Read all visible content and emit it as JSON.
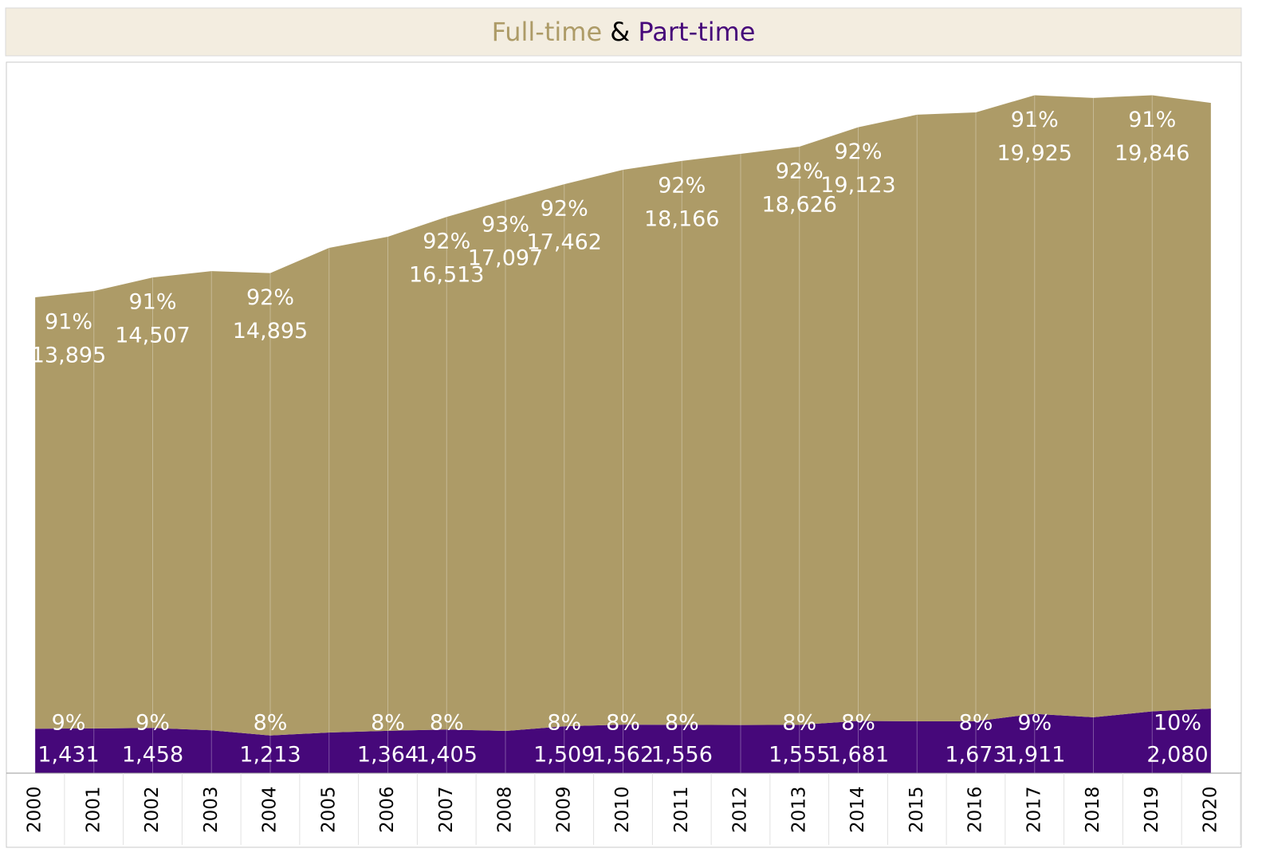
{
  "chart_data": {
    "type": "stacked-area",
    "title_joiner": "&",
    "categories": [
      "2000",
      "2001",
      "2002",
      "2003",
      "2004",
      "2005",
      "2006",
      "2007",
      "2008",
      "2009",
      "2010",
      "2011",
      "2012",
      "2013",
      "2014",
      "2015",
      "2016",
      "2017",
      "2018",
      "2019",
      "2020"
    ],
    "series": [
      {
        "name": "Part-time",
        "color": "#46087a",
        "values": [
          1431,
          1440,
          1458,
          1380,
          1213,
          1310,
          1364,
          1405,
          1360,
          1509,
          1562,
          1556,
          1550,
          1555,
          1681,
          1670,
          1673,
          1911,
          1800,
          1990,
          2080
        ],
        "value_labels": [
          "1,431",
          null,
          "1,458",
          null,
          "1,213",
          null,
          "1,364",
          "1,405",
          null,
          "1,509",
          "1,562",
          "1,556",
          null,
          "1,555",
          "1,681",
          null,
          "1,673",
          "1,911",
          null,
          null,
          "2,080"
        ],
        "share_labels": [
          "9%",
          null,
          "9%",
          null,
          "8%",
          null,
          "8%",
          "8%",
          null,
          "8%",
          "8%",
          "8%",
          null,
          "8%",
          "8%",
          null,
          "8%",
          "9%",
          null,
          null,
          "10%"
        ]
      },
      {
        "name": "Full-time",
        "color": "#ad9b67",
        "values": [
          13895,
          14090,
          14507,
          14790,
          14895,
          15610,
          15915,
          16513,
          17097,
          17462,
          17873,
          18166,
          18400,
          18626,
          19123,
          19540,
          19610,
          19925,
          19950,
          19846,
          19510
        ],
        "value_labels": [
          "13,895",
          null,
          "14,507",
          null,
          "14,895",
          null,
          null,
          "16,513",
          "17,097",
          "17,462",
          null,
          "18,166",
          null,
          "18,626",
          "19,123",
          null,
          null,
          "19,925",
          null,
          "19,846",
          null
        ],
        "share_labels": [
          "91%",
          null,
          "91%",
          null,
          "92%",
          null,
          null,
          "92%",
          "93%",
          "92%",
          null,
          "92%",
          null,
          "92%",
          "92%",
          null,
          null,
          "91%",
          null,
          "91%",
          null
        ]
      }
    ]
  }
}
